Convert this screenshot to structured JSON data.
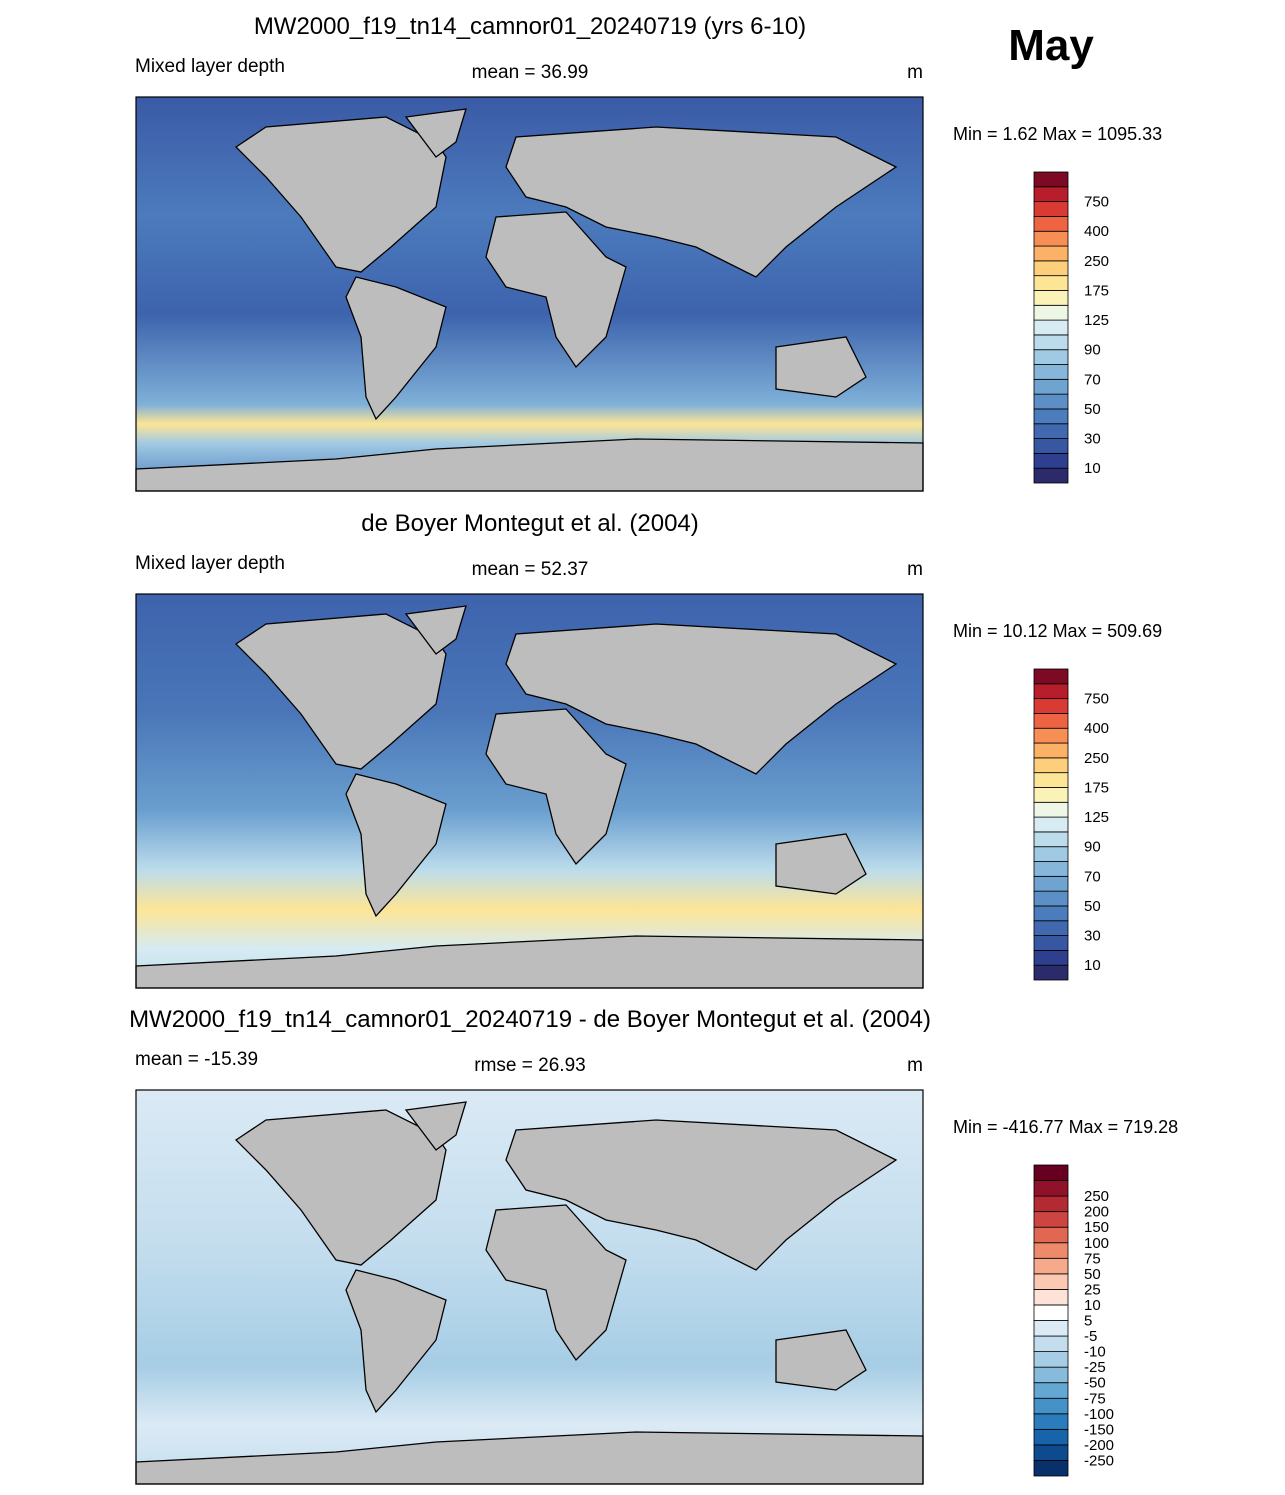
{
  "month": "May",
  "panels": [
    {
      "title": "MW2000_f19_tn14_camnor01_20240719 (yrs 6-10)",
      "left": "Mixed layer depth",
      "center": "mean =  36.99",
      "right": "m",
      "minmax": "Min =   1.62 Max = 1095.33",
      "colorbar": {
        "labels": [
          "10",
          "30",
          "50",
          "70",
          "90",
          "125",
          "175",
          "250",
          "400",
          "750"
        ],
        "colors": [
          "#2b2a6b",
          "#2f3f8f",
          "#3757a3",
          "#4169b0",
          "#4b7cbb",
          "#5b8fc6",
          "#6fa3d0",
          "#86b6da",
          "#a0c9e4",
          "#bcdcec",
          "#d6ebf2",
          "#eef6e6",
          "#fbf2b8",
          "#fde596",
          "#fdcf7c",
          "#fbb266",
          "#f78f54",
          "#ee6443",
          "#d93a33",
          "#b81d2b",
          "#7d0a23"
        ]
      }
    },
    {
      "title": "de Boyer Montegut et al. (2004)",
      "left": "Mixed layer depth",
      "center": "mean =  52.37",
      "right": "m",
      "minmax": "Min =  10.12 Max = 509.69",
      "colorbar": {
        "labels": [
          "10",
          "30",
          "50",
          "70",
          "90",
          "125",
          "175",
          "250",
          "400",
          "750"
        ],
        "colors": [
          "#2b2a6b",
          "#2f3f8f",
          "#3757a3",
          "#4169b0",
          "#4b7cbb",
          "#5b8fc6",
          "#6fa3d0",
          "#86b6da",
          "#a0c9e4",
          "#bcdcec",
          "#d6ebf2",
          "#eef6e6",
          "#fbf2b8",
          "#fde596",
          "#fdcf7c",
          "#fbb266",
          "#f78f54",
          "#ee6443",
          "#d93a33",
          "#b81d2b",
          "#7d0a23"
        ]
      }
    },
    {
      "title": "MW2000_f19_tn14_camnor01_20240719 - de Boyer Montegut et al. (2004)",
      "left": "mean = -15.39",
      "center": "rmse =  26.93",
      "right": "m",
      "minmax": "Min = -416.77 Max = 719.28",
      "colorbar": {
        "labels": [
          "-250",
          "-200",
          "-150",
          "-100",
          "-75",
          "-50",
          "-25",
          "-10",
          "-5",
          "5",
          "10",
          "25",
          "50",
          "75",
          "100",
          "150",
          "200",
          "250"
        ],
        "colors": [
          "#08306b",
          "#0d4a8e",
          "#1764ab",
          "#2a7cbc",
          "#4592c8",
          "#64a7d3",
          "#86bbdc",
          "#a6cde5",
          "#c3ddee",
          "#dbeaf5",
          "#ffffff",
          "#fde3d7",
          "#fbc9b2",
          "#f6a98b",
          "#ee8a6c",
          "#e06852",
          "#cd4540",
          "#b42a33",
          "#8f1228",
          "#67001f"
        ]
      }
    }
  ]
}
